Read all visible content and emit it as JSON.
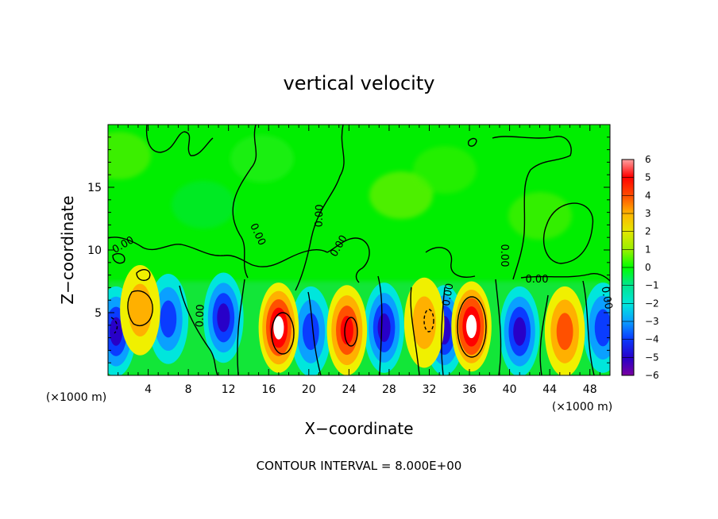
{
  "chart_data": {
    "type": "heatmap",
    "title": "vertical velocity",
    "xlabel": "X−coordinate",
    "ylabel": "Z−coordinate",
    "x_unit_left": "(×1000 m)",
    "x_unit_right": "(×1000 m)",
    "xlim": [
      0,
      50
    ],
    "ylim": [
      0,
      20
    ],
    "x_ticks": [
      "4",
      "8",
      "12",
      "16",
      "20",
      "24",
      "28",
      "32",
      "36",
      "40",
      "44",
      "48"
    ],
    "y_ticks": [
      "5",
      "10",
      "15"
    ],
    "colorbar": {
      "ticks": [
        "6",
        "5",
        "4",
        "3",
        "2",
        "1",
        "0",
        "−1",
        "−2",
        "−3",
        "−4",
        "−5",
        "−6"
      ],
      "range": [
        -6,
        6
      ]
    },
    "contour_labels": [
      "0.00",
      "0.00",
      "0.00",
      "0.00",
      "0.00",
      "0.00",
      "0.00",
      "0.00",
      "0.00"
    ],
    "contour_interval_text": "CONTOUR INTERVAL = 8.000E+00",
    "updraft_cells": [
      {
        "x": 3.2,
        "z": 5.2,
        "w": 3
      },
      {
        "x": 17.0,
        "z": 3.8,
        "w": 9
      },
      {
        "x": 23.8,
        "z": 3.6,
        "w": 8
      },
      {
        "x": 31.5,
        "z": 4.2,
        "w": 3
      },
      {
        "x": 36.2,
        "z": 3.9,
        "w": 10
      },
      {
        "x": 45.5,
        "z": 3.5,
        "w": 5
      }
    ],
    "downdraft_cells": [
      {
        "x": 0.8,
        "z": 3.5,
        "w": -8
      },
      {
        "x": 6.0,
        "z": 4.5,
        "w": -5
      },
      {
        "x": 11.5,
        "z": 4.6,
        "w": -7
      },
      {
        "x": 20.2,
        "z": 3.5,
        "w": -6
      },
      {
        "x": 27.5,
        "z": 3.8,
        "w": -7
      },
      {
        "x": 33.5,
        "z": 3.6,
        "w": -8
      },
      {
        "x": 41.0,
        "z": 3.5,
        "w": -7
      },
      {
        "x": 49.3,
        "z": 3.8,
        "w": -5
      }
    ]
  }
}
